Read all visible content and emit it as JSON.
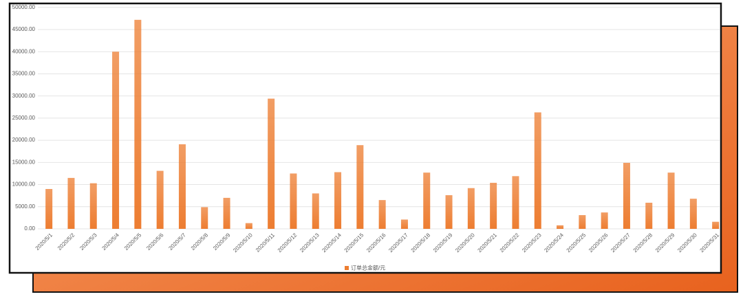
{
  "chart_data": {
    "type": "bar",
    "categories": [
      "2020/5/1",
      "2020/5/2",
      "2020/5/3",
      "2020/5/4",
      "2020/5/5",
      "2020/5/6",
      "2020/5/7",
      "2020/5/8",
      "2020/5/9",
      "2020/5/10",
      "2020/5/11",
      "2020/5/12",
      "2020/5/13",
      "2020/5/14",
      "2020/5/15",
      "2020/5/16",
      "2020/5/17",
      "2020/5/18",
      "2020/5/19",
      "2020/5/20",
      "2020/5/21",
      "2020/5/22",
      "2020/5/23",
      "2020/5/24",
      "2020/5/25",
      "2020/5/26",
      "2020/5/27",
      "2020/5/28",
      "2020/5/29",
      "2020/5/30",
      "2020/5/31"
    ],
    "series": [
      {
        "name": "订单总金额/元",
        "color": "#ed7d31",
        "values": [
          9000,
          11500,
          10300,
          40000,
          47200,
          13100,
          19100,
          4900,
          7000,
          1300,
          29400,
          12500,
          8000,
          12800,
          18900,
          6500,
          2100,
          12700,
          7600,
          9200,
          10400,
          11900,
          26300,
          800,
          3100,
          3700,
          14900,
          5900,
          12700,
          6800,
          1600
        ]
      }
    ],
    "ylim": [
      0,
      50000
    ],
    "yticks": [
      {
        "value": 0,
        "label": "0.00"
      },
      {
        "value": 5000,
        "label": "5000.00"
      },
      {
        "value": 10000,
        "label": "10000.00"
      },
      {
        "value": 15000,
        "label": "15000.00"
      },
      {
        "value": 20000,
        "label": "20000.00"
      },
      {
        "value": 25000,
        "label": "25000.00"
      },
      {
        "value": 30000,
        "label": "30000.00"
      },
      {
        "value": 35000,
        "label": "35000.00"
      },
      {
        "value": 40000,
        "label": "40000.00"
      },
      {
        "value": 45000,
        "label": "45000.00"
      },
      {
        "value": 50000,
        "label": "50000.00"
      }
    ],
    "grid": true,
    "legend": "bottom"
  }
}
